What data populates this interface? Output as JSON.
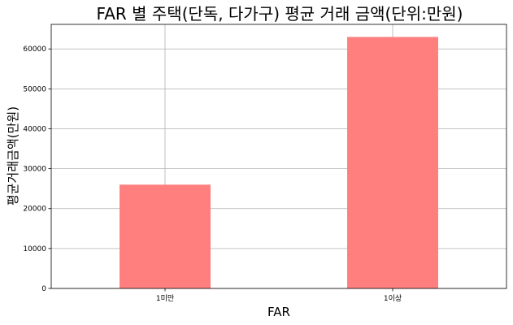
{
  "chart_data": {
    "type": "bar",
    "title": "FAR 별 주택(단독, 다가구) 평균 거래 금액(단위:만원)",
    "xlabel": "FAR",
    "ylabel": "평균거래금액(만원)",
    "categories": [
      "1미만",
      "1이상"
    ],
    "values": [
      26000,
      63000
    ],
    "ylim": [
      0,
      66150
    ],
    "yticks": [
      0,
      10000,
      20000,
      30000,
      40000,
      50000,
      60000
    ],
    "grid": true,
    "bar_color": "#ff7f7f",
    "grid_color": "#b0b0b0"
  }
}
